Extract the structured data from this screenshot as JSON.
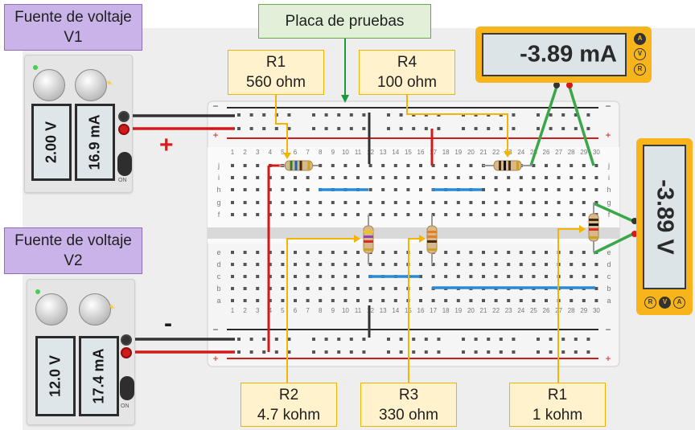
{
  "breadboard": {
    "title": "Placa de pruebas",
    "columns": [
      "1",
      "2",
      "3",
      "4",
      "5",
      "6",
      "7",
      "8",
      "9",
      "10",
      "11",
      "12",
      "13",
      "14",
      "15",
      "16",
      "17",
      "18",
      "19",
      "20",
      "21",
      "22",
      "23",
      "24",
      "25",
      "26",
      "27",
      "28",
      "29",
      "30"
    ],
    "rows_top": [
      "j",
      "i",
      "h",
      "g",
      "f"
    ],
    "rows_bottom": [
      "e",
      "d",
      "c",
      "b",
      "a"
    ],
    "rail_plus": "+",
    "rail_minus": "−"
  },
  "supply_v1": {
    "label": "Fuente de voltaje V1",
    "voltage": "2.00 V",
    "current": "16.9 mA",
    "polarity_marker": "+",
    "button": "ON"
  },
  "supply_v2": {
    "label": "Fuente de voltaje V2",
    "voltage": "12.0 V",
    "current": "17.4 mA",
    "polarity_marker": "-",
    "button": "ON"
  },
  "ammeter": {
    "reading": "-3.89 mA",
    "modes": [
      "A",
      "V",
      "R"
    ],
    "active_mode": "A"
  },
  "voltmeter": {
    "reading": "-3.89 V",
    "modes": [
      "R",
      "V",
      "A"
    ],
    "active_mode": "V"
  },
  "resistors": [
    {
      "id": "r1_top",
      "name": "R1",
      "value": "560 ohm",
      "bands": [
        "#2e7d32",
        "#1565c0",
        "#4a2c12",
        "#c9a227"
      ]
    },
    {
      "id": "r4",
      "name": "R4",
      "value": "100 ohm",
      "bands": [
        "#4a2c12",
        "#111111",
        "#4a2c12",
        "#c9a227"
      ]
    },
    {
      "id": "r2",
      "name": "R2",
      "value": "4.7 kohm",
      "bands": [
        "#f1c40f",
        "#8e44ad",
        "#d12e2e",
        "#c9a227"
      ]
    },
    {
      "id": "r3",
      "name": "R3",
      "value": "330 ohm",
      "bands": [
        "#e67e22",
        "#e67e22",
        "#4a2c12",
        "#c9a227"
      ]
    },
    {
      "id": "r1_bottom",
      "name": "R1",
      "value": "1 kohm",
      "bands": [
        "#4a2c12",
        "#111111",
        "#d12e2e",
        "#c9a227"
      ]
    }
  ],
  "colors": {
    "wire_red": "#d11a1a",
    "wire_black": "#333333",
    "wire_blue": "#2a8ad4",
    "wire_green": "#3aa84a",
    "callout": "#f4b400",
    "meter_body": "#f7b51b",
    "title_arrow": "#1a9a3a"
  },
  "icons": [
    "knob-icon",
    "jack-icon",
    "power-led-icon",
    "lightning-icon",
    "mode-button-icon"
  ]
}
